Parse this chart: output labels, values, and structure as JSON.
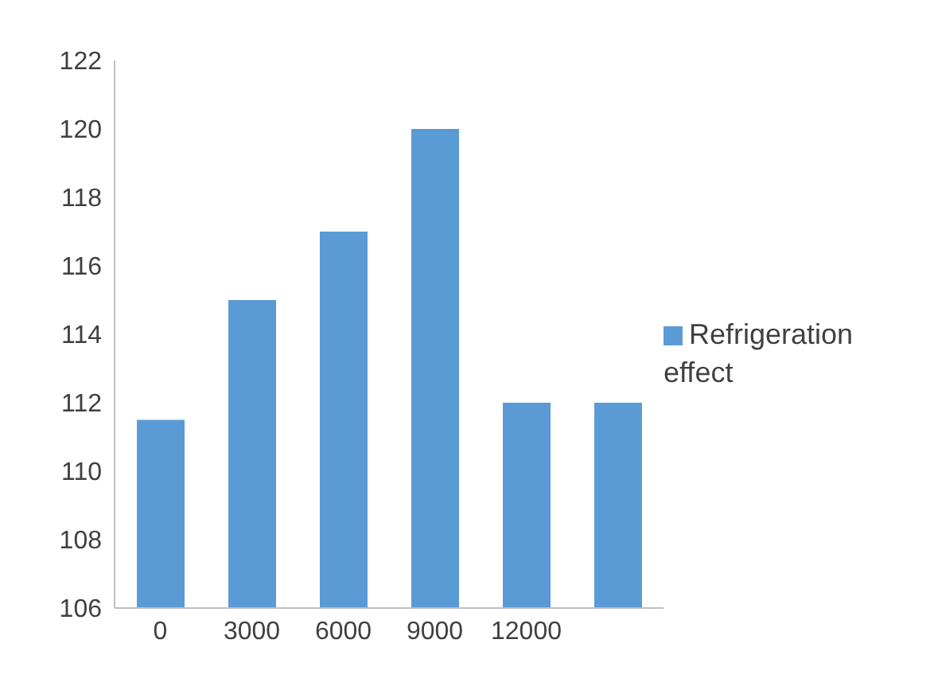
{
  "chart_data": {
    "type": "bar",
    "categories": [
      "0",
      "3000",
      "6000",
      "9000",
      "12000",
      null
    ],
    "series": [
      {
        "name": "Refrigeration effect",
        "color": "#5b9bd5",
        "values": [
          111.5,
          115,
          117,
          120,
          112,
          112
        ]
      }
    ],
    "ylim": [
      106,
      122
    ],
    "yticks": [
      106,
      108,
      110,
      112,
      114,
      116,
      118,
      120,
      122
    ],
    "grid": false,
    "legend": "right"
  }
}
